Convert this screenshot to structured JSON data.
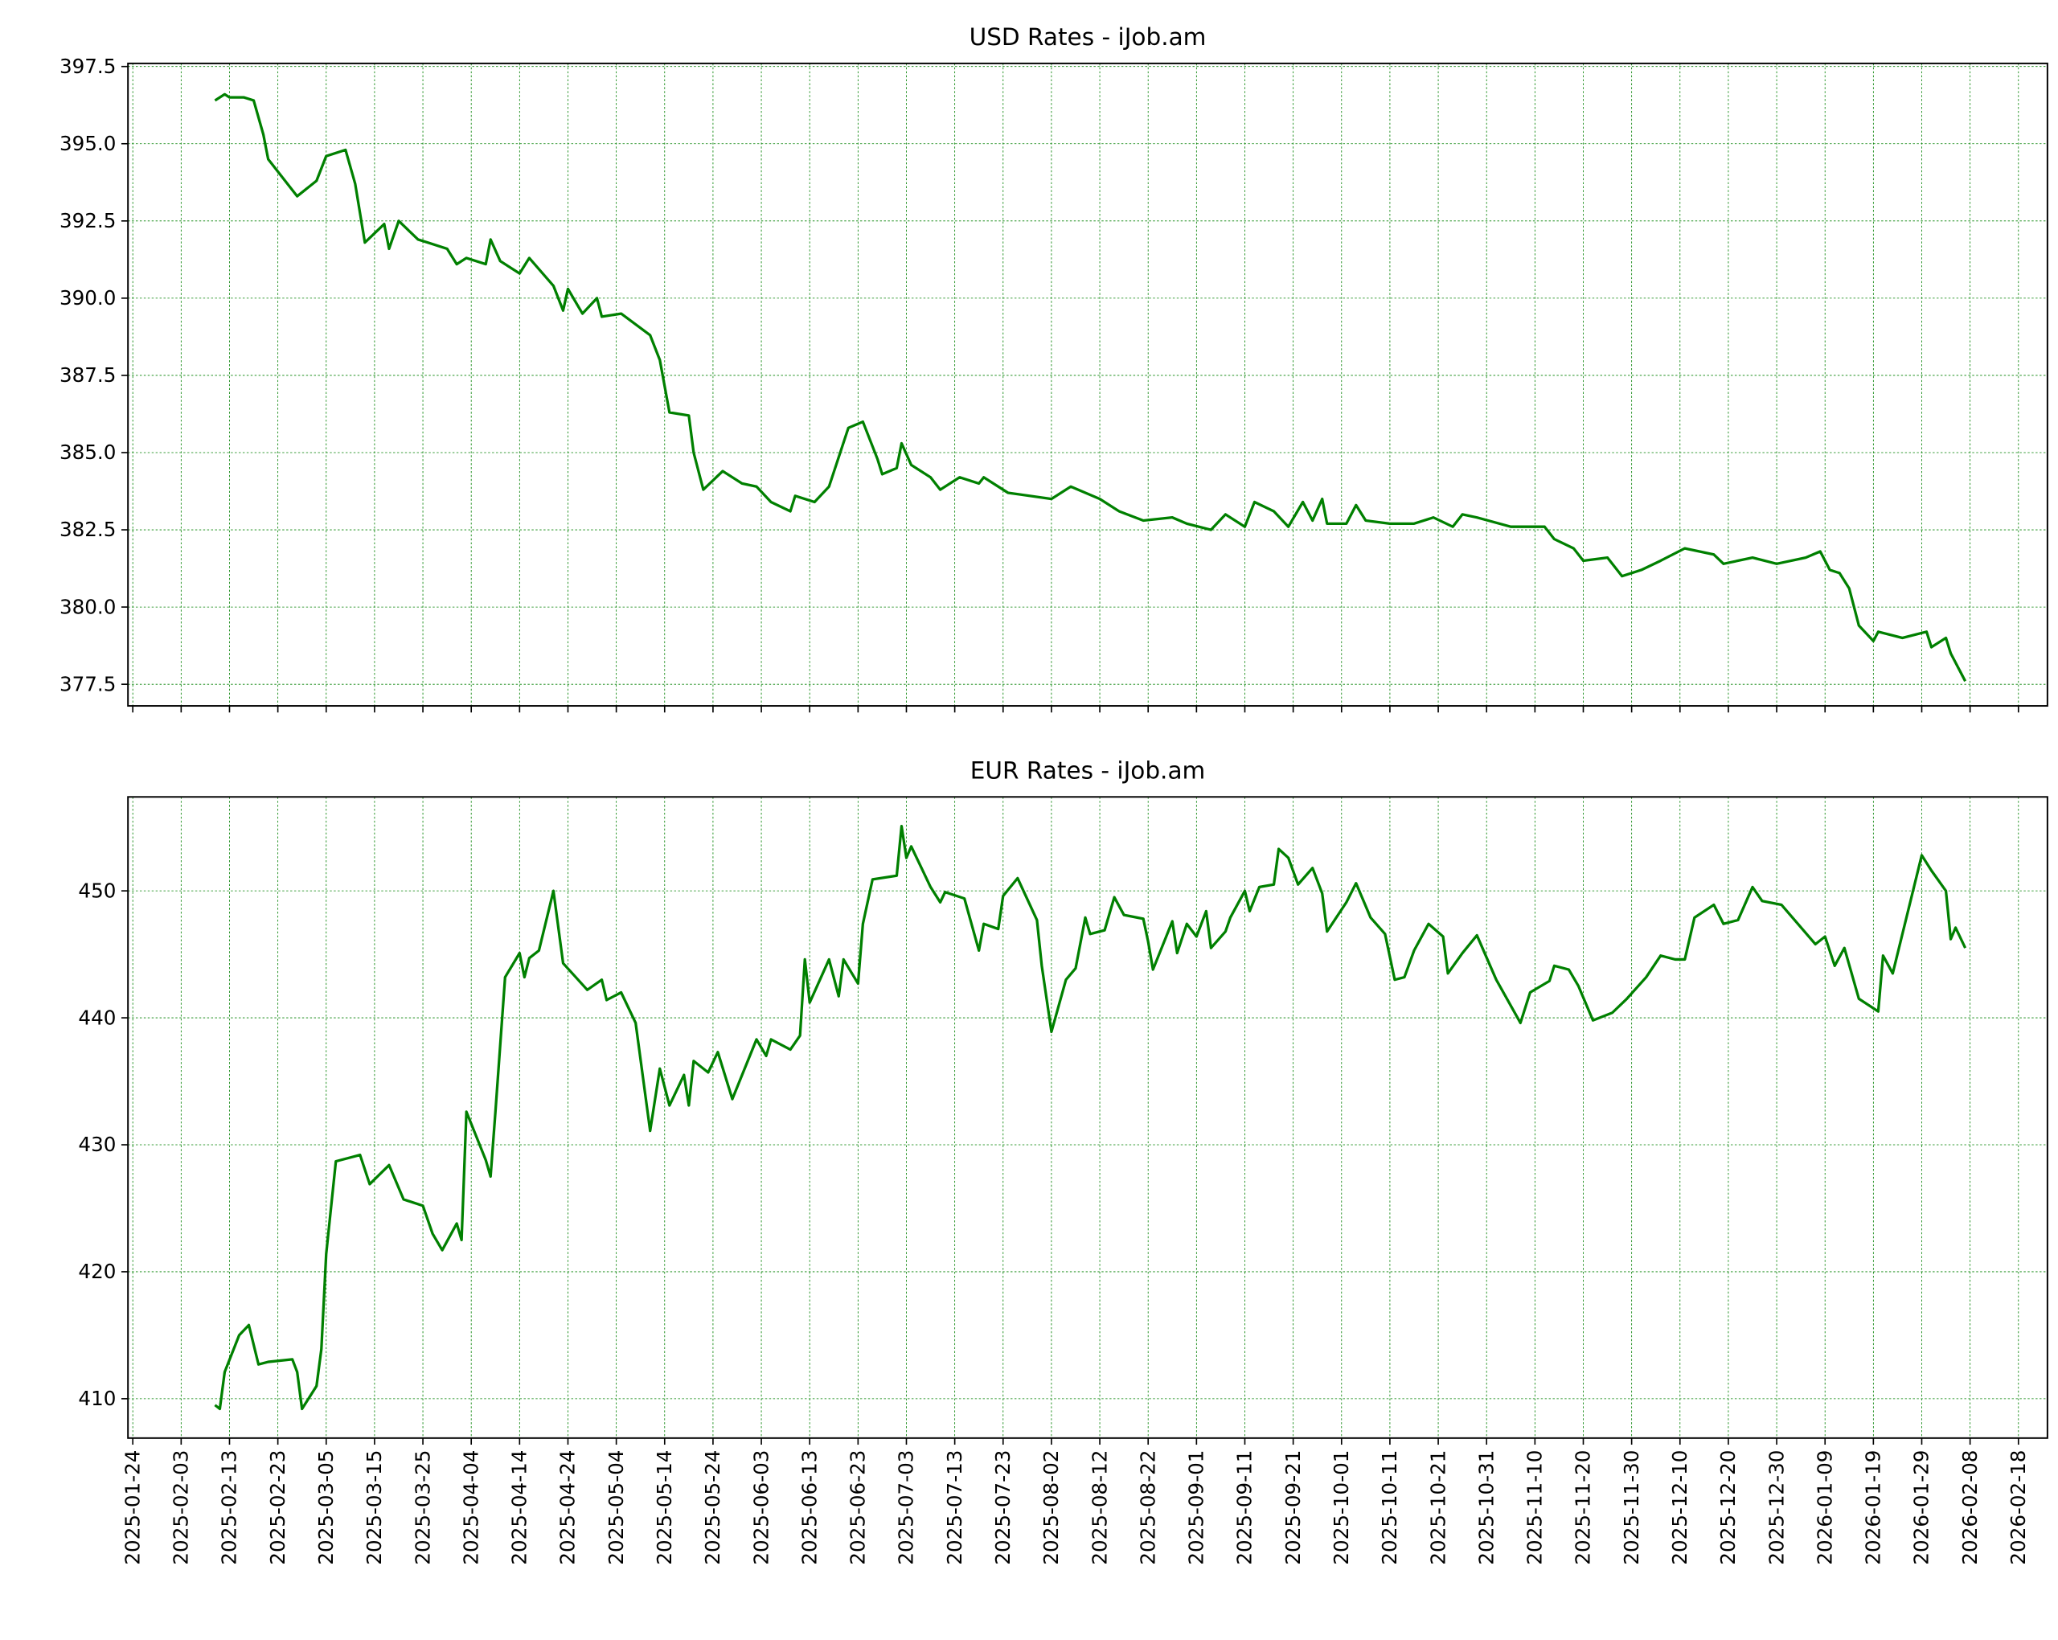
{
  "chart_data": [
    {
      "type": "line",
      "title": "USD Rates - iJob.am",
      "color": "#008000",
      "grid": true,
      "show_xtick_labels": false,
      "xlim": [
        "2025-01-23",
        "2026-02-24"
      ],
      "ylim": [
        376.8,
        397.6
      ],
      "xticks": [
        "2025-01-24",
        "2025-02-03",
        "2025-02-13",
        "2025-02-23",
        "2025-03-05",
        "2025-03-15",
        "2025-03-25",
        "2025-04-04",
        "2025-04-14",
        "2025-04-24",
        "2025-05-04",
        "2025-05-14",
        "2025-05-24",
        "2025-06-03",
        "2025-06-13",
        "2025-06-23",
        "2025-07-03",
        "2025-07-13",
        "2025-07-23",
        "2025-08-02",
        "2025-08-12",
        "2025-08-22",
        "2025-09-01",
        "2025-09-11",
        "2025-09-21",
        "2025-10-01",
        "2025-10-11",
        "2025-10-21",
        "2025-10-31",
        "2025-11-10",
        "2025-11-20",
        "2025-11-30",
        "2025-12-10",
        "2025-12-20",
        "2025-12-30",
        "2026-01-09",
        "2026-01-19",
        "2026-01-29",
        "2026-02-08",
        "2026-02-18"
      ],
      "yticks": [
        377.5,
        {
          "value": 380,
          "label": "380.0"
        },
        382.5,
        {
          "value": 385,
          "label": "385.0"
        },
        387.5,
        {
          "value": 390,
          "label": "390.0"
        },
        392.5,
        {
          "value": 395,
          "label": "395.0"
        },
        397.5
      ],
      "x": [
        "2025-02-10",
        "2025-02-12",
        "2025-02-13",
        "2025-02-16",
        "2025-02-18",
        "2025-02-20",
        "2025-02-21",
        "2025-02-27",
        "2025-03-03",
        "2025-03-05",
        "2025-03-09",
        "2025-03-11",
        "2025-03-13",
        "2025-03-17",
        "2025-03-18",
        "2025-03-20",
        "2025-03-24",
        "2025-03-26",
        "2025-03-30",
        "2025-04-01",
        "2025-04-03",
        "2025-04-07",
        "2025-04-08",
        "2025-04-10",
        "2025-04-14",
        "2025-04-16",
        "2025-04-21",
        "2025-04-23",
        "2025-04-24",
        "2025-04-27",
        "2025-04-30",
        "2025-05-01",
        "2025-05-05",
        "2025-05-11",
        "2025-05-13",
        "2025-05-15",
        "2025-05-19",
        "2025-05-20",
        "2025-05-22",
        "2025-05-26",
        "2025-05-30",
        "2025-06-02",
        "2025-06-05",
        "2025-06-09",
        "2025-06-10",
        "2025-06-14",
        "2025-06-17",
        "2025-06-21",
        "2025-06-24",
        "2025-06-27",
        "2025-06-28",
        "2025-07-01",
        "2025-07-02",
        "2025-07-04",
        "2025-07-08",
        "2025-07-10",
        "2025-07-14",
        "2025-07-18",
        "2025-07-19",
        "2025-07-24",
        "2025-08-02",
        "2025-08-06",
        "2025-08-12",
        "2025-08-16",
        "2025-08-21",
        "2025-08-27",
        "2025-08-30",
        "2025-09-04",
        "2025-09-07",
        "2025-09-11",
        "2025-09-13",
        "2025-09-17",
        "2025-09-20",
        "2025-09-23",
        "2025-09-25",
        "2025-09-27",
        "2025-09-28",
        "2025-10-02",
        "2025-10-04",
        "2025-10-06",
        "2025-10-11",
        "2025-10-16",
        "2025-10-20",
        "2025-10-24",
        "2025-10-26",
        "2025-10-29",
        "2025-11-05",
        "2025-11-12",
        "2025-11-14",
        "2025-11-18",
        "2025-11-20",
        "2025-11-25",
        "2025-11-28",
        "2025-12-02",
        "2025-12-06",
        "2025-12-11",
        "2025-12-17",
        "2025-12-19",
        "2025-12-25",
        "2025-12-30",
        "2026-01-05",
        "2026-01-08",
        "2026-01-10",
        "2026-01-12",
        "2026-01-14",
        "2026-01-16",
        "2026-01-19",
        "2026-01-20",
        "2026-01-25",
        "2026-01-30",
        "2026-01-31",
        "2026-02-03",
        "2026-02-04",
        "2026-02-07"
      ],
      "values": [
        396.4,
        396.6,
        396.5,
        396.5,
        396.4,
        395.3,
        394.5,
        393.3,
        393.8,
        394.6,
        394.8,
        393.7,
        391.8,
        392.4,
        391.6,
        392.5,
        391.9,
        391.8,
        391.6,
        391.1,
        391.3,
        391.1,
        391.9,
        391.2,
        390.8,
        391.3,
        390.4,
        389.6,
        390.3,
        389.5,
        390.0,
        389.4,
        389.5,
        388.8,
        388.0,
        386.3,
        386.2,
        385.0,
        383.8,
        384.4,
        384.0,
        383.9,
        383.4,
        383.1,
        383.6,
        383.4,
        383.9,
        385.8,
        386.0,
        384.8,
        384.3,
        384.5,
        385.3,
        384.6,
        384.2,
        383.8,
        384.2,
        384.0,
        384.2,
        383.7,
        383.5,
        383.9,
        383.5,
        383.1,
        382.8,
        382.9,
        382.7,
        382.5,
        383.0,
        382.6,
        383.4,
        383.1,
        382.6,
        383.4,
        382.8,
        383.5,
        382.7,
        382.7,
        383.3,
        382.8,
        382.7,
        382.7,
        382.9,
        382.6,
        383.0,
        382.9,
        382.6,
        382.6,
        382.2,
        381.9,
        381.5,
        381.6,
        381.0,
        381.2,
        381.5,
        381.9,
        381.7,
        381.4,
        381.6,
        381.4,
        381.6,
        381.8,
        381.2,
        381.1,
        380.6,
        379.4,
        378.9,
        379.2,
        379.0,
        379.2,
        378.7,
        379.0,
        378.5,
        377.6
      ]
    },
    {
      "type": "line",
      "title": "EUR Rates - iJob.am",
      "color": "#008000",
      "grid": true,
      "show_xtick_labels": true,
      "xlim": [
        "2025-01-23",
        "2026-02-24"
      ],
      "ylim": [
        406.9,
        457.4
      ],
      "xticks": [
        "2025-01-24",
        "2025-02-03",
        "2025-02-13",
        "2025-02-23",
        "2025-03-05",
        "2025-03-15",
        "2025-03-25",
        "2025-04-04",
        "2025-04-14",
        "2025-04-24",
        "2025-05-04",
        "2025-05-14",
        "2025-05-24",
        "2025-06-03",
        "2025-06-13",
        "2025-06-23",
        "2025-07-03",
        "2025-07-13",
        "2025-07-23",
        "2025-08-02",
        "2025-08-12",
        "2025-08-22",
        "2025-09-01",
        "2025-09-11",
        "2025-09-21",
        "2025-10-01",
        "2025-10-11",
        "2025-10-21",
        "2025-10-31",
        "2025-11-10",
        "2025-11-20",
        "2025-11-30",
        "2025-12-10",
        "2025-12-20",
        "2025-12-30",
        "2026-01-09",
        "2026-01-19",
        "2026-01-29",
        "2026-02-08",
        "2026-02-18"
      ],
      "yticks": [
        410,
        420,
        430,
        440,
        450
      ],
      "x": [
        "2025-02-10",
        "2025-02-11",
        "2025-02-12",
        "2025-02-15",
        "2025-02-17",
        "2025-02-19",
        "2025-02-21",
        "2025-02-26",
        "2025-02-27",
        "2025-02-28",
        "2025-03-03",
        "2025-03-04",
        "2025-03-05",
        "2025-03-07",
        "2025-03-10",
        "2025-03-12",
        "2025-03-14",
        "2025-03-18",
        "2025-03-21",
        "2025-03-25",
        "2025-03-27",
        "2025-03-29",
        "2025-04-01",
        "2025-04-02",
        "2025-04-03",
        "2025-04-05",
        "2025-04-07",
        "2025-04-08",
        "2025-04-09",
        "2025-04-11",
        "2025-04-14",
        "2025-04-15",
        "2025-04-16",
        "2025-04-18",
        "2025-04-21",
        "2025-04-23",
        "2025-04-28",
        "2025-05-01",
        "2025-05-02",
        "2025-05-05",
        "2025-05-08",
        "2025-05-11",
        "2025-05-13",
        "2025-05-15",
        "2025-05-18",
        "2025-05-19",
        "2025-05-20",
        "2025-05-23",
        "2025-05-25",
        "2025-05-28",
        "2025-06-02",
        "2025-06-04",
        "2025-06-05",
        "2025-06-09",
        "2025-06-11",
        "2025-06-12",
        "2025-06-13",
        "2025-06-17",
        "2025-06-19",
        "2025-06-20",
        "2025-06-23",
        "2025-06-24",
        "2025-06-26",
        "2025-07-01",
        "2025-07-02",
        "2025-07-03",
        "2025-07-04",
        "2025-07-08",
        "2025-07-10",
        "2025-07-11",
        "2025-07-15",
        "2025-07-18",
        "2025-07-19",
        "2025-07-22",
        "2025-07-23",
        "2025-07-26",
        "2025-07-30",
        "2025-07-31",
        "2025-08-02",
        "2025-08-05",
        "2025-08-07",
        "2025-08-09",
        "2025-08-10",
        "2025-08-13",
        "2025-08-15",
        "2025-08-17",
        "2025-08-21",
        "2025-08-22",
        "2025-08-23",
        "2025-08-27",
        "2025-08-28",
        "2025-08-30",
        "2025-09-01",
        "2025-09-03",
        "2025-09-04",
        "2025-09-07",
        "2025-09-08",
        "2025-09-11",
        "2025-09-12",
        "2025-09-14",
        "2025-09-17",
        "2025-09-18",
        "2025-09-20",
        "2025-09-22",
        "2025-09-25",
        "2025-09-27",
        "2025-09-28",
        "2025-10-02",
        "2025-10-04",
        "2025-10-07",
        "2025-10-10",
        "2025-10-12",
        "2025-10-14",
        "2025-10-16",
        "2025-10-19",
        "2025-10-22",
        "2025-10-23",
        "2025-10-26",
        "2025-10-29",
        "2025-11-02",
        "2025-11-07",
        "2025-11-09",
        "2025-11-13",
        "2025-11-14",
        "2025-11-17",
        "2025-11-19",
        "2025-11-22",
        "2025-11-26",
        "2025-11-29",
        "2025-12-03",
        "2025-12-06",
        "2025-12-09",
        "2025-12-11",
        "2025-12-13",
        "2025-12-17",
        "2025-12-19",
        "2025-12-22",
        "2025-12-25",
        "2025-12-27",
        "2025-12-31",
        "2026-01-07",
        "2026-01-09",
        "2026-01-11",
        "2026-01-13",
        "2026-01-16",
        "2026-01-20",
        "2026-01-21",
        "2026-01-23",
        "2026-01-29",
        "2026-01-31",
        "2026-02-03",
        "2026-02-04",
        "2026-02-05",
        "2026-02-07"
      ],
      "values": [
        409.5,
        409.2,
        412.1,
        415.0,
        415.8,
        412.7,
        412.9,
        413.1,
        412.1,
        409.2,
        411.0,
        413.9,
        421.4,
        428.7,
        429.0,
        429.2,
        426.9,
        428.4,
        425.7,
        425.2,
        423.0,
        421.7,
        423.8,
        422.5,
        432.6,
        430.7,
        428.8,
        427.5,
        432.6,
        443.2,
        445.1,
        443.2,
        444.7,
        445.3,
        450.0,
        444.3,
        442.2,
        443.0,
        441.4,
        442.0,
        439.6,
        431.1,
        436.0,
        433.1,
        435.5,
        433.1,
        436.6,
        435.7,
        437.3,
        433.6,
        438.3,
        437.0,
        438.3,
        437.5,
        438.6,
        444.6,
        441.2,
        444.6,
        441.7,
        444.6,
        442.7,
        447.4,
        450.9,
        451.2,
        455.1,
        452.6,
        453.5,
        450.3,
        449.1,
        449.9,
        449.4,
        445.3,
        447.4,
        447.0,
        449.6,
        451.0,
        447.7,
        444.1,
        438.9,
        443.0,
        443.9,
        447.9,
        446.6,
        446.9,
        449.5,
        448.1,
        447.8,
        446.0,
        443.8,
        447.6,
        445.1,
        447.4,
        446.4,
        448.4,
        445.5,
        446.8,
        447.9,
        450.0,
        448.4,
        450.3,
        450.5,
        453.3,
        452.6,
        450.5,
        451.8,
        449.8,
        446.8,
        449.1,
        450.6,
        447.9,
        446.6,
        443.0,
        443.2,
        445.3,
        447.4,
        446.4,
        443.5,
        445.1,
        446.5,
        443.0,
        439.6,
        442.0,
        442.9,
        444.1,
        443.8,
        442.5,
        439.8,
        440.4,
        441.5,
        443.2,
        444.9,
        444.6,
        444.6,
        447.9,
        448.9,
        447.4,
        447.7,
        450.3,
        449.2,
        448.9,
        445.8,
        446.4,
        444.1,
        445.5,
        441.5,
        440.5,
        444.9,
        443.5,
        452.8,
        451.6,
        450.0,
        446.2,
        447.1,
        445.5
      ]
    }
  ]
}
